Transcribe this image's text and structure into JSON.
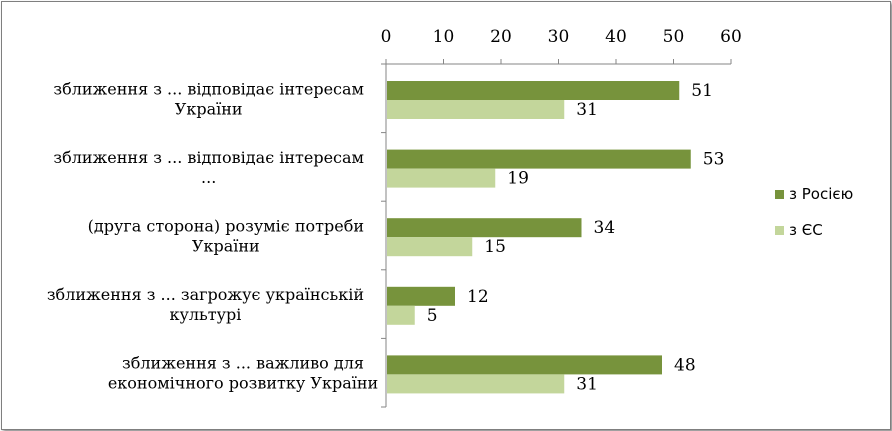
{
  "chart_data": {
    "type": "bar",
    "orientation": "horizontal",
    "categories": [
      [
        "зближення з ... відповідає інтересам",
        "України"
      ],
      [
        "зближення з ... відповідає інтересам",
        "..."
      ],
      [
        "(друга сторона) розуміє потреби",
        "України"
      ],
      [
        "зближення з ... загрожує українській",
        "культурі"
      ],
      [
        "зближення з ... важливо для",
        "економічного розвитку України"
      ]
    ],
    "series": [
      {
        "name": "з Росією",
        "values": [
          51,
          53,
          34,
          12,
          48
        ],
        "color": "#77933c"
      },
      {
        "name": "з ЄС",
        "values": [
          31,
          19,
          15,
          5,
          31
        ],
        "color": "#c3d69b"
      }
    ],
    "xlim": [
      0,
      60
    ],
    "xticks": [
      0,
      10,
      20,
      30,
      40,
      50,
      60
    ],
    "axis_position": "top",
    "grid": false,
    "legend_position": "right",
    "data_labels": true
  }
}
